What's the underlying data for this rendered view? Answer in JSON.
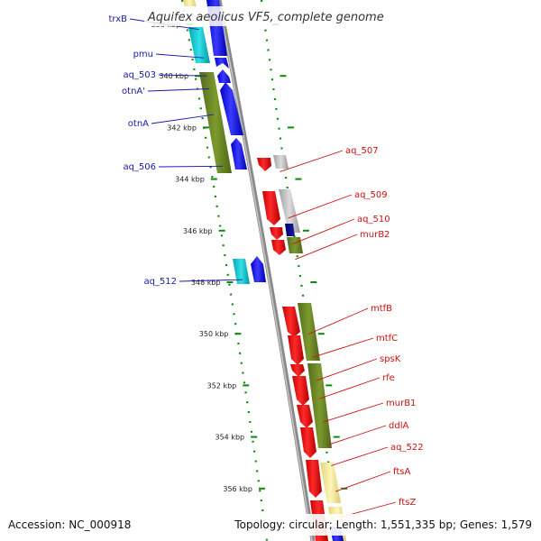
{
  "title": "Aquifex aeolicus VF5, complete genome",
  "accession": "Accession: NC_000918",
  "summary": "Topology: circular; Length: 1,551,335 bp; Genes: 1,579",
  "colors": {
    "forward_cds": "#0000ee",
    "reverse_cds": "#ee0000",
    "rna_cyan": "#00c8d0",
    "cog_olive": "#6b8e23",
    "cog_gray": "#b4b4b4",
    "cog_khaki": "#f0e68c",
    "backbone": "#888888",
    "gc_dots": "#0a8a0a"
  },
  "scale": {
    "unit": "kbp",
    "ticks": [
      {
        "kbp": 338,
        "label": "338 kbp"
      },
      {
        "kbp": 340,
        "label": "340 kbp"
      },
      {
        "kbp": 342,
        "label": "342 kbp"
      },
      {
        "kbp": 344,
        "label": "344 kbp"
      },
      {
        "kbp": 346,
        "label": "346 kbp"
      },
      {
        "kbp": 348,
        "label": "348 kbp"
      },
      {
        "kbp": 350,
        "label": "350 kbp"
      },
      {
        "kbp": 352,
        "label": "352 kbp"
      },
      {
        "kbp": 354,
        "label": "354 kbp"
      },
      {
        "kbp": 356,
        "label": "356 kbp"
      }
    ]
  },
  "forward_labels": [
    {
      "name": "trxB",
      "kbp": 338.2
    },
    {
      "name": "pmu",
      "kbp": 339.3
    },
    {
      "name": "aq_503",
      "kbp": 340.0
    },
    {
      "name": "otnA'",
      "kbp": 340.5
    },
    {
      "name": "otnA",
      "kbp": 341.5
    },
    {
      "name": "aq_506",
      "kbp": 343.5
    },
    {
      "name": "aq_512",
      "kbp": 347.9
    }
  ],
  "reverse_labels": [
    {
      "name": "aq_507",
      "kbp": 343.4
    },
    {
      "name": "aq_509",
      "kbp": 345.2
    },
    {
      "name": "aq_510",
      "kbp": 346.2
    },
    {
      "name": "murB2",
      "kbp": 346.8
    },
    {
      "name": "mtfB",
      "kbp": 349.7
    },
    {
      "name": "mtfC",
      "kbp": 350.6
    },
    {
      "name": "spsK",
      "kbp": 351.5
    },
    {
      "name": "rfe",
      "kbp": 352.2
    },
    {
      "name": "murB1",
      "kbp": 353.1
    },
    {
      "name": "ddlA",
      "kbp": 354.0
    },
    {
      "name": "aq_522",
      "kbp": 354.8
    },
    {
      "name": "ftsA",
      "kbp": 355.8
    },
    {
      "name": "ftsZ",
      "kbp": 356.8
    }
  ]
}
